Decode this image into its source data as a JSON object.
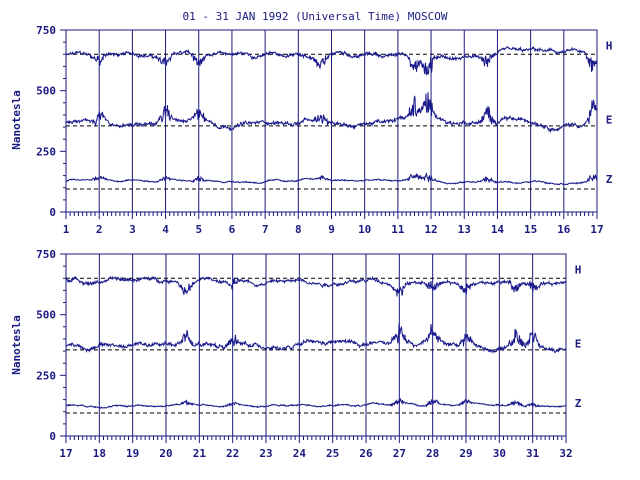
{
  "chart_data": {
    "type": "line",
    "title": "01 - 31 JAN 1992 (Universal Time) MOSCOW",
    "ylabel": "Nanotesla",
    "ylim": [
      0,
      750
    ],
    "yticks": [
      "0",
      "250",
      "500",
      "750"
    ],
    "colors": {
      "line": "#1a1a8c",
      "axis": "#1a1a80",
      "baseline": "#000000"
    },
    "components": [
      {
        "name": "H",
        "baseline": 650,
        "level": 645,
        "noise": 14
      },
      {
        "name": "E",
        "baseline": 355,
        "level": 372,
        "noise": 16
      },
      {
        "name": "Z",
        "baseline": 95,
        "level": 128,
        "noise": 6
      }
    ],
    "panels": [
      {
        "xticks": [
          "1",
          "2",
          "3",
          "4",
          "5",
          "6",
          "7",
          "8",
          "9",
          "10",
          "11",
          "12",
          "13",
          "14",
          "15",
          "16",
          "17"
        ],
        "disturbances": [
          {
            "day": 2.0,
            "amp": 30
          },
          {
            "day": 4.0,
            "amp": 35
          },
          {
            "day": 5.0,
            "amp": 40
          },
          {
            "day": 8.7,
            "amp": 35
          },
          {
            "day": 11.5,
            "amp": 55
          },
          {
            "day": 11.9,
            "amp": 70
          },
          {
            "day": 13.7,
            "amp": 40
          },
          {
            "day": 16.9,
            "amp": 60
          }
        ]
      },
      {
        "xticks": [
          "17",
          "18",
          "19",
          "20",
          "21",
          "22",
          "23",
          "24",
          "25",
          "26",
          "27",
          "28",
          "29",
          "30",
          "31",
          "32"
        ],
        "disturbances": [
          {
            "day": 20.6,
            "amp": 35
          },
          {
            "day": 22.0,
            "amp": 30
          },
          {
            "day": 27.0,
            "amp": 40
          },
          {
            "day": 28.0,
            "amp": 45
          },
          {
            "day": 29.0,
            "amp": 30
          },
          {
            "day": 30.5,
            "amp": 45
          },
          {
            "day": 31.0,
            "amp": 35
          }
        ]
      }
    ]
  }
}
